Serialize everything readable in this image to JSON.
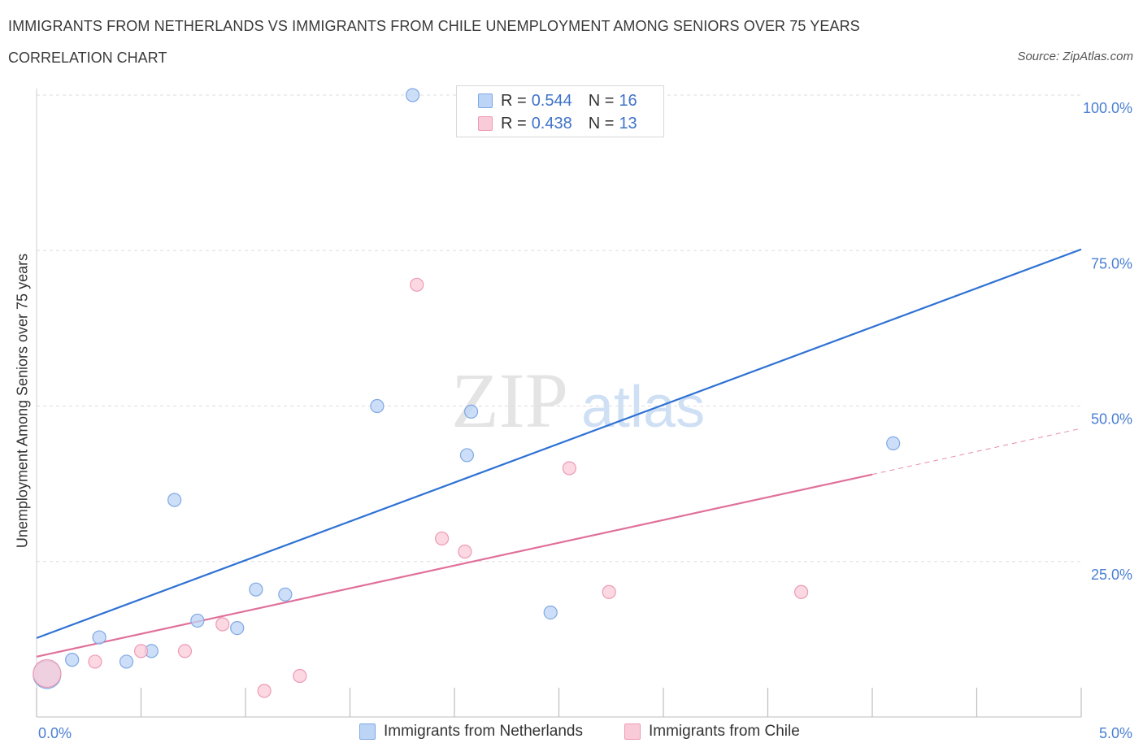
{
  "header": {
    "title": "IMMIGRANTS FROM NETHERLANDS VS IMMIGRANTS FROM CHILE UNEMPLOYMENT AMONG SENIORS OVER 75 YEARS",
    "subtitle": "CORRELATION CHART",
    "source": "Source: ZipAtlas.com"
  },
  "legend": {
    "netherlands": {
      "r_label": "R =",
      "r_value": "0.544",
      "n_label": "N =",
      "n_value": "16"
    },
    "chile": {
      "r_label": "R =",
      "r_value": "0.438",
      "n_label": "N =",
      "n_value": "13"
    }
  },
  "bottom_legend": {
    "netherlands": "Immigrants from Netherlands",
    "chile": "Immigrants from Chile"
  },
  "colors": {
    "netherlands_fill": "#bcd4f6",
    "netherlands_stroke": "#7ea8e4",
    "netherlands_line": "#2f72d4",
    "chile_fill": "#f9cbd8",
    "chile_stroke": "#ee9ab3",
    "chile_line": "#e0709a",
    "grid": "#dddddd",
    "axis_text": "#4a7fd4"
  },
  "chart_data": {
    "type": "scatter",
    "title": "IMMIGRANTS FROM NETHERLANDS VS IMMIGRANTS FROM CHILE UNEMPLOYMENT AMONG SENIORS OVER 75 YEARS",
    "xlabel": "",
    "ylabel": "Unemployment Among Seniors over 75 years",
    "xlim": [
      0,
      5
    ],
    "ylim": [
      0,
      100
    ],
    "x_tick_labels": [
      "0.0%",
      "5.0%"
    ],
    "y_tick_labels": [
      "25.0%",
      "50.0%",
      "75.0%",
      "100.0%"
    ],
    "y_ticks": [
      25,
      50,
      75,
      100
    ],
    "grid": true,
    "series": [
      {
        "name": "Immigrants from Netherlands",
        "points": [
          {
            "x": 0.05,
            "y": 6.8,
            "big": true
          },
          {
            "x": 0.17,
            "y": 9.2
          },
          {
            "x": 0.3,
            "y": 12.8
          },
          {
            "x": 0.43,
            "y": 8.9
          },
          {
            "x": 0.55,
            "y": 10.6
          },
          {
            "x": 0.66,
            "y": 34.9
          },
          {
            "x": 0.77,
            "y": 15.5
          },
          {
            "x": 0.96,
            "y": 14.3
          },
          {
            "x": 1.05,
            "y": 20.5
          },
          {
            "x": 1.19,
            "y": 19.7
          },
          {
            "x": 1.63,
            "y": 50.0
          },
          {
            "x": 1.8,
            "y": 100.0
          },
          {
            "x": 2.06,
            "y": 42.1
          },
          {
            "x": 2.08,
            "y": 49.1
          },
          {
            "x": 2.46,
            "y": 16.8
          },
          {
            "x": 4.1,
            "y": 44.0
          }
        ],
        "trend": {
          "x0": 0.0,
          "y0": 12.7,
          "x1": 5.0,
          "y1": 75.2
        }
      },
      {
        "name": "Immigrants from Chile",
        "points": [
          {
            "x": 0.05,
            "y": 7.0,
            "big": true
          },
          {
            "x": 0.28,
            "y": 8.9
          },
          {
            "x": 0.5,
            "y": 10.6
          },
          {
            "x": 0.71,
            "y": 10.6
          },
          {
            "x": 0.89,
            "y": 14.9
          },
          {
            "x": 1.09,
            "y": 4.2
          },
          {
            "x": 1.26,
            "y": 6.6
          },
          {
            "x": 1.82,
            "y": 69.5
          },
          {
            "x": 1.94,
            "y": 28.7
          },
          {
            "x": 2.05,
            "y": 26.6
          },
          {
            "x": 2.55,
            "y": 40.0
          },
          {
            "x": 2.74,
            "y": 20.1
          },
          {
            "x": 3.66,
            "y": 20.1
          }
        ],
        "trend": {
          "x0": 0.0,
          "y0": 9.7,
          "x1": 4.0,
          "y1": 39.0,
          "dash_to_x": 5.0,
          "dash_to_y": 46.4
        }
      }
    ]
  }
}
